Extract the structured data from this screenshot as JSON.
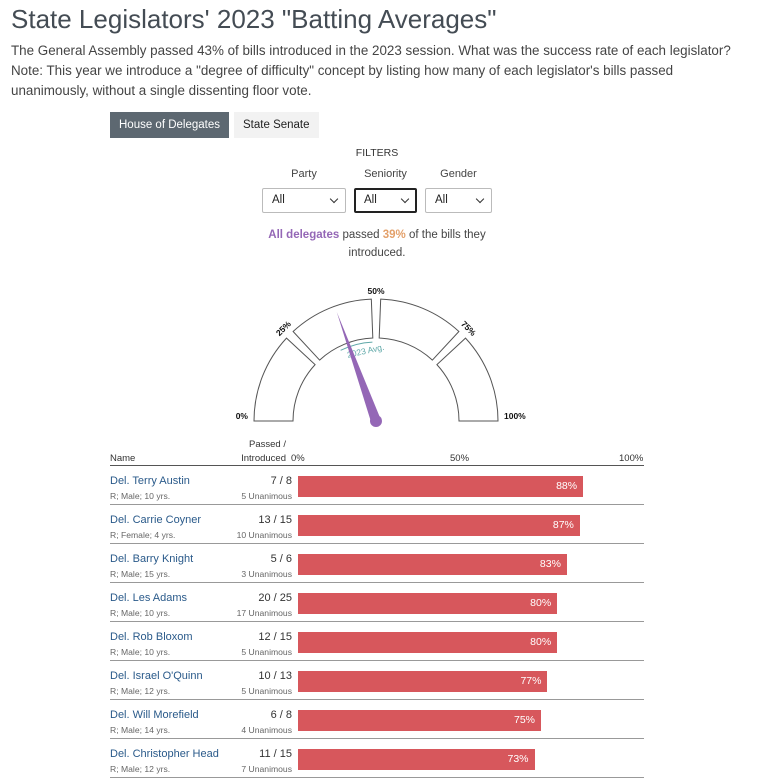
{
  "header": {
    "title": "State Legislators' 2023 \"Batting Averages\"",
    "intro": "The General Assembly passed 43% of bills introduced in the 2023 session. What was the success rate of each legislator? Note: This year we introduce a \"degree of difficulty\" concept by listing how many of each legislator's bills passed unanimously, without a single dissenting floor vote."
  },
  "tabs": [
    {
      "label": "House of Delegates",
      "active": true
    },
    {
      "label": "State Senate",
      "active": false
    }
  ],
  "filters": {
    "title": "FILTERS",
    "party": {
      "label": "Party",
      "value": "All"
    },
    "seniority": {
      "label": "Seniority",
      "value": "All"
    },
    "gender": {
      "label": "Gender",
      "value": "All"
    }
  },
  "summary": {
    "group": "All delegates",
    "mid": "passed",
    "pct": "39%",
    "tail": "of the bills they introduced."
  },
  "gauge": {
    "value": 39,
    "avg_value": 43,
    "avg_label": "2023 Avg.",
    "labels": [
      "0%",
      "25%",
      "50%",
      "75%",
      "100%"
    ],
    "needle_color": "#9467b6",
    "avg_color": "#5fa8a8"
  },
  "table": {
    "col_name": "Name",
    "col_passed_1": "Passed /",
    "col_passed_2": "Introduced",
    "axis": [
      "0%",
      "50%",
      "100%"
    ]
  },
  "chart_data": {
    "type": "bar",
    "title": "",
    "xlim": [
      0,
      100
    ],
    "bar_color": "#d7575c",
    "categories": [
      "Del. Terry Austin",
      "Del. Carrie Coyner",
      "Del. Barry Knight",
      "Del. Les Adams",
      "Del. Rob Bloxom",
      "Del. Israel O'Quinn",
      "Del. Will Morefield",
      "Del. Christopher Head"
    ],
    "values": [
      88,
      87,
      83,
      80,
      80,
      77,
      75,
      73
    ],
    "rows": [
      {
        "name": "Del. Terry Austin",
        "meta": "R; Male; 10 yrs.",
        "frac": "7 / 8",
        "unanimous": "5 Unanimous",
        "pct": 88,
        "label": "88%"
      },
      {
        "name": "Del. Carrie Coyner",
        "meta": "R; Female; 4 yrs.",
        "frac": "13 / 15",
        "unanimous": "10 Unanimous",
        "pct": 87,
        "label": "87%"
      },
      {
        "name": "Del. Barry Knight",
        "meta": "R; Male; 15 yrs.",
        "frac": "5 / 6",
        "unanimous": "3 Unanimous",
        "pct": 83,
        "label": "83%"
      },
      {
        "name": "Del. Les Adams",
        "meta": "R; Male; 10 yrs.",
        "frac": "20 / 25",
        "unanimous": "17 Unanimous",
        "pct": 80,
        "label": "80%"
      },
      {
        "name": "Del. Rob Bloxom",
        "meta": "R; Male; 10 yrs.",
        "frac": "12 / 15",
        "unanimous": "5 Unanimous",
        "pct": 80,
        "label": "80%"
      },
      {
        "name": "Del. Israel O'Quinn",
        "meta": "R; Male; 12 yrs.",
        "frac": "10 / 13",
        "unanimous": "5 Unanimous",
        "pct": 77,
        "label": "77%"
      },
      {
        "name": "Del. Will Morefield",
        "meta": "R; Male; 14 yrs.",
        "frac": "6 / 8",
        "unanimous": "4 Unanimous",
        "pct": 75,
        "label": "75%"
      },
      {
        "name": "Del. Christopher Head",
        "meta": "R; Male; 12 yrs.",
        "frac": "11 / 15",
        "unanimous": "7 Unanimous",
        "pct": 73,
        "label": "73%"
      }
    ]
  }
}
